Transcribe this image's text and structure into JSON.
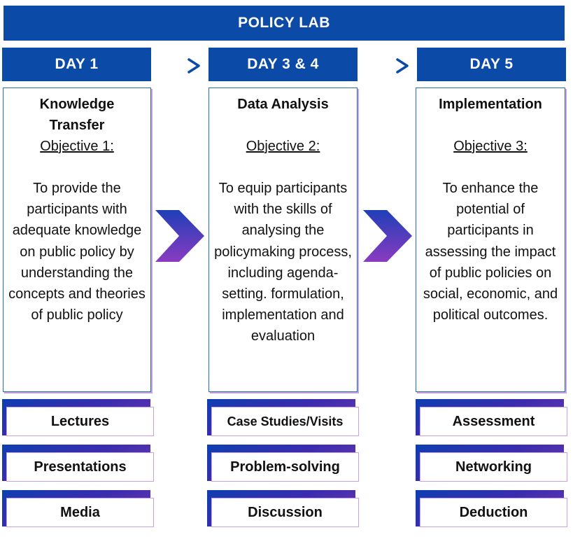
{
  "banner": {
    "title": "POLICY LAB"
  },
  "columns": [
    {
      "day": "DAY 1",
      "title": "Knowledge Transfer",
      "objective": "Objective 1:",
      "text": "To provide the participants with adequate knowledge on public policy by understanding the concepts and theories of public policy",
      "chips": [
        "Lectures",
        "Presentations",
        "Media"
      ]
    },
    {
      "day": "DAY 3 & 4",
      "title": "Data Analysis",
      "objective": "Objective 2:",
      "text": "To equip participants with the skills of analysing the policymaking process, including agenda-setting. formulation, implementation and evaluation",
      "chips": [
        "Case Studies/Visits",
        "Problem-solving",
        "Discussion"
      ]
    },
    {
      "day": "DAY 5",
      "title": "Implementation",
      "objective": "Objective 3:",
      "text": "To enhance the potential of participants in assessing the impact of public policies on social, economic, and political outcomes.",
      "chips": [
        "Assessment",
        "Networking",
        "Deduction"
      ]
    }
  ],
  "colors": {
    "primary": "#0c4aa8",
    "arrow": "#1a6fc4",
    "chevron_top": "#1f3fb8",
    "chevron_bottom": "#8a3bc0",
    "chip_border": "#c7a0e6"
  }
}
